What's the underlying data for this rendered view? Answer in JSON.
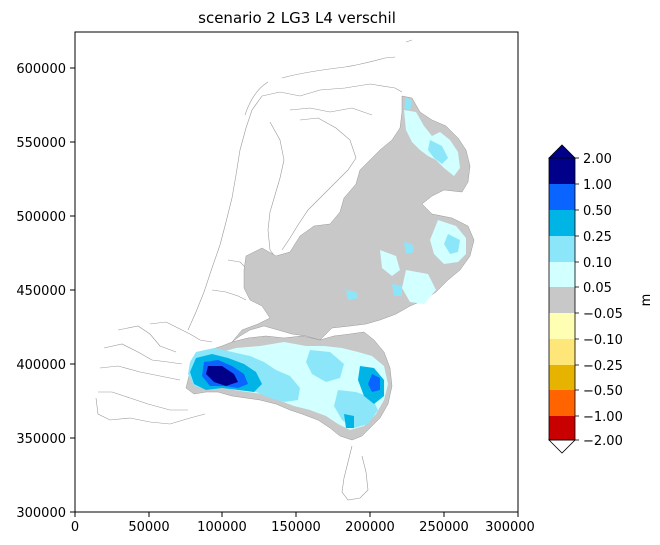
{
  "title": "scenario 2 LG3 L4 verschil",
  "map": {
    "x_ticks": [
      "0",
      "50000",
      "100000",
      "150000",
      "200000",
      "250000",
      "300000"
    ],
    "y_ticks": [
      "300000",
      "350000",
      "400000",
      "450000",
      "500000",
      "550000",
      "600000"
    ],
    "xlim": [
      0,
      300000
    ],
    "ylim": [
      300000,
      625000
    ]
  },
  "colorbar": {
    "unit_label": "m",
    "tick_labels": [
      "2.00",
      "1.00",
      "0.50",
      "0.25",
      "0.10",
      "0.05",
      "−0.05",
      "−0.10",
      "−0.25",
      "−0.50",
      "−1.00",
      "−2.00"
    ],
    "colors": [
      "#00008b",
      "#0a64ff",
      "#00b4e6",
      "#8ce6fa",
      "#d2ffff",
      "#c8c8c8",
      "#ffffb4",
      "#ffe678",
      "#e6b400",
      "#ff6400",
      "#c80000"
    ],
    "extend_top_color": "#00008b",
    "extend_bottom_color": "#ffffff"
  },
  "legend_colors": {
    "region_fill": "#c8c8c8",
    "outline": "#999999",
    "axes": "#000000"
  }
}
